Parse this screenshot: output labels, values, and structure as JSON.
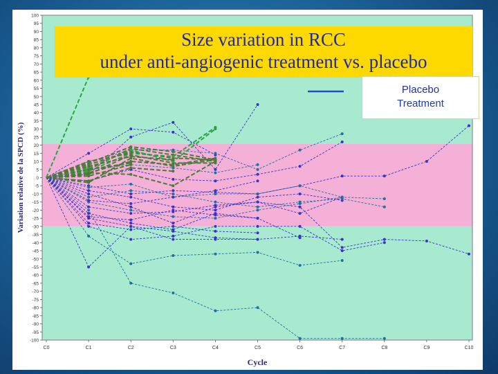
{
  "slide": {
    "title_line1": "Size variation in RCC",
    "title_line2": "under anti-angiogenic treatment vs. placebo"
  },
  "legend": {
    "placebo_label": "Placebo",
    "treatment_label": "Treatment"
  },
  "chart_data": {
    "type": "line",
    "ylabel": "Variation relative de la SPCD (%)",
    "xlabel": "Cycle",
    "categories": [
      "C0",
      "C1",
      "C2",
      "C3",
      "C4",
      "C5",
      "C6",
      "C7",
      "C8",
      "C9",
      "C10"
    ],
    "ylim": [
      -100,
      100
    ],
    "yticks": [
      100,
      95,
      90,
      85,
      80,
      75,
      70,
      65,
      60,
      55,
      50,
      45,
      40,
      35,
      30,
      25,
      20,
      15,
      10,
      5,
      0,
      -5,
      -10,
      -15,
      -20,
      -25,
      -30,
      -35,
      -40,
      -45,
      -50,
      -55,
      -60,
      -65,
      -70,
      -75,
      -80,
      -85,
      -90,
      -95,
      -100
    ],
    "bands": [
      {
        "from": -30,
        "to": 21,
        "color": "#f4b0d6"
      },
      {
        "from": -100,
        "to": -30,
        "color": "#a8ead0"
      },
      {
        "from": 21,
        "to": 100,
        "color": "#a8ead0"
      }
    ],
    "colors": {
      "placebo": "#4d7a3a",
      "placebo_bright": "#2aa640",
      "treatment": "#3a32c8",
      "treatment_teal": "#1f6fa0"
    },
    "placebo": [
      [
        0,
        62
      ],
      [
        0,
        5,
        18,
        14,
        10
      ],
      [
        0,
        8,
        16,
        12,
        11
      ],
      [
        0,
        2,
        14,
        9,
        9
      ],
      [
        0,
        -3,
        12,
        7,
        11
      ],
      [
        0,
        6,
        17,
        10,
        30
      ],
      [
        0,
        4,
        15,
        13,
        31
      ],
      [
        0,
        9,
        19,
        16,
        11
      ],
      [
        0,
        3,
        10,
        8,
        12
      ],
      [
        0,
        7,
        13,
        11
      ],
      [
        0,
        -2,
        6,
        4
      ],
      [
        0,
        1,
        8
      ],
      [
        0,
        10,
        15
      ],
      [
        0,
        5,
        9
      ],
      [
        0,
        3,
        2,
        -5,
        10
      ]
    ],
    "treatment": [
      [
        0,
        -55,
        -30,
        -38,
        -38,
        -38
      ],
      [
        0,
        -36,
        -53,
        -48,
        -47,
        -46,
        -54,
        -51
      ],
      [
        0,
        15,
        30,
        28,
        14
      ],
      [
        0,
        2,
        25,
        34,
        5,
        45
      ],
      [
        0,
        10,
        17,
        17,
        15,
        5,
        17,
        27
      ],
      [
        0,
        -5,
        -10,
        -8,
        -9,
        -10,
        -5,
        1,
        1,
        10,
        32
      ],
      [
        0,
        -10,
        -18,
        -28,
        -18,
        -15,
        -18,
        -43,
        -38,
        -39,
        -47
      ],
      [
        0,
        -20,
        -65,
        -71,
        -82,
        -80,
        -99,
        -99,
        -99
      ],
      [
        0,
        -30,
        -38,
        -36,
        -30,
        -30,
        -30,
        -45,
        -40
      ],
      [
        0,
        -22,
        -28,
        -32,
        -22,
        -25,
        -37
      ],
      [
        0,
        -15,
        -20,
        -24,
        -25,
        -20,
        -16,
        -12,
        -13
      ],
      [
        0,
        -25,
        -30,
        -33,
        -37,
        -38,
        -36,
        -38
      ],
      [
        0,
        -8,
        -12,
        -18,
        -20,
        -12,
        -10,
        -14
      ],
      [
        0,
        -12,
        -8,
        -10,
        -15,
        -18,
        -15,
        -13,
        -18
      ],
      [
        0,
        -18,
        -22,
        -21,
        -17,
        -15,
        -22,
        -12
      ],
      [
        0,
        -2,
        5,
        -1,
        -2,
        2,
        7,
        22
      ],
      [
        0,
        5,
        8,
        6,
        3,
        8
      ],
      [
        0,
        -28,
        -32,
        -30,
        -33,
        -34
      ],
      [
        0,
        -24,
        -26,
        -20,
        -23,
        -25
      ],
      [
        0,
        -6,
        -4,
        -12,
        -10,
        -10,
        -5,
        -12
      ],
      [
        0,
        -14,
        -16,
        -12,
        -8,
        -2
      ]
    ]
  }
}
